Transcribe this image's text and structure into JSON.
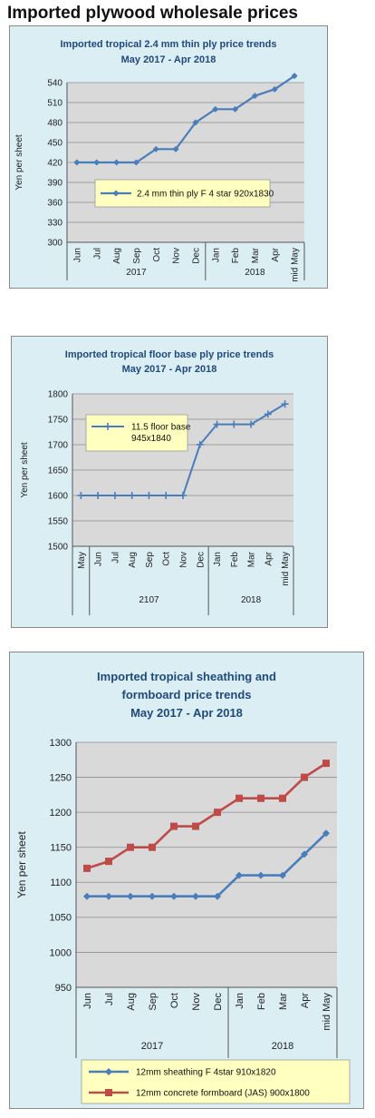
{
  "page": {
    "title": "Imported plywood wholesale prices"
  },
  "chart_data": [
    {
      "type": "line",
      "title": "Imported tropical 2.4 mm thin ply price trends",
      "subtitle": "May 2017 -  Apr 2018",
      "ylabel": "Yen per sheet",
      "ylim": [
        300,
        540
      ],
      "yticks": [
        300,
        330,
        360,
        390,
        420,
        450,
        480,
        510,
        540
      ],
      "categories": [
        "Jun",
        "Jul",
        "Aug",
        "Sep",
        "Oct",
        "Nov",
        "Dec",
        "Jan",
        "Feb",
        "Mar",
        "Apr",
        "mid May"
      ],
      "years": [
        {
          "label": "2017",
          "count": 7
        },
        {
          "label": "2018",
          "count": 5
        }
      ],
      "series": [
        {
          "name": "2.4 mm thin ply F 4 star 920x1830",
          "color": "#4a7ebb",
          "marker": "diamond",
          "values": [
            420,
            420,
            420,
            420,
            440,
            440,
            480,
            500,
            500,
            520,
            530,
            550
          ]
        }
      ],
      "grid": true,
      "legend_position": "inside-bottom"
    },
    {
      "type": "line",
      "title": "Imported tropical floor base ply price trends",
      "subtitle": "May 2017 -  Apr 2018",
      "ylabel": "Yen per sheet",
      "ylim": [
        1500,
        1800
      ],
      "yticks": [
        1500,
        1550,
        1600,
        1650,
        1700,
        1750,
        1800
      ],
      "categories": [
        "May",
        "Jun",
        "Jul",
        "Aug",
        "Sep",
        "Oct",
        "Nov",
        "Dec",
        "Jan",
        "Feb",
        "Mar",
        "Apr",
        "mid May"
      ],
      "years": [
        {
          "label": "",
          "count": 1
        },
        {
          "label": "2107",
          "count": 7
        },
        {
          "label": "2018",
          "count": 5
        }
      ],
      "series": [
        {
          "name": "11.5 floor base\n945x1840",
          "color": "#4a7ebb",
          "marker": "plus",
          "values": [
            1600,
            1600,
            1600,
            1600,
            1600,
            1600,
            1600,
            1700,
            1740,
            1740,
            1740,
            1760,
            1780
          ]
        }
      ],
      "grid": true,
      "legend_position": "inside-top-left"
    },
    {
      "type": "line",
      "title": "Imported tropical sheathing and",
      "title2": "formboard price trends",
      "subtitle": "May 2017 -  Apr 2018",
      "ylabel": "Yen per sheet",
      "ylim": [
        950,
        1300
      ],
      "yticks": [
        950,
        1000,
        1050,
        1100,
        1150,
        1200,
        1250,
        1300
      ],
      "categories": [
        "Jun",
        "Jul",
        "Aug",
        "Sep",
        "Oct",
        "Nov",
        "Dec",
        "Jan",
        "Feb",
        "Mar",
        "Apr",
        "mid May"
      ],
      "years": [
        {
          "label": "2017",
          "count": 7
        },
        {
          "label": "2018",
          "count": 5
        }
      ],
      "series": [
        {
          "name": "12mm sheathing F 4star 910x1820",
          "color": "#4a7ebb",
          "marker": "diamond",
          "values": [
            1080,
            1080,
            1080,
            1080,
            1080,
            1080,
            1080,
            1110,
            1110,
            1110,
            1140,
            1170
          ]
        },
        {
          "name": "12mm concrete formboard (JAS) 900x1800",
          "color": "#be4b48",
          "marker": "square",
          "values": [
            1120,
            1130,
            1150,
            1150,
            1180,
            1180,
            1200,
            1220,
            1220,
            1220,
            1250,
            1270
          ]
        }
      ],
      "grid": true,
      "legend_position": "bottom"
    }
  ]
}
